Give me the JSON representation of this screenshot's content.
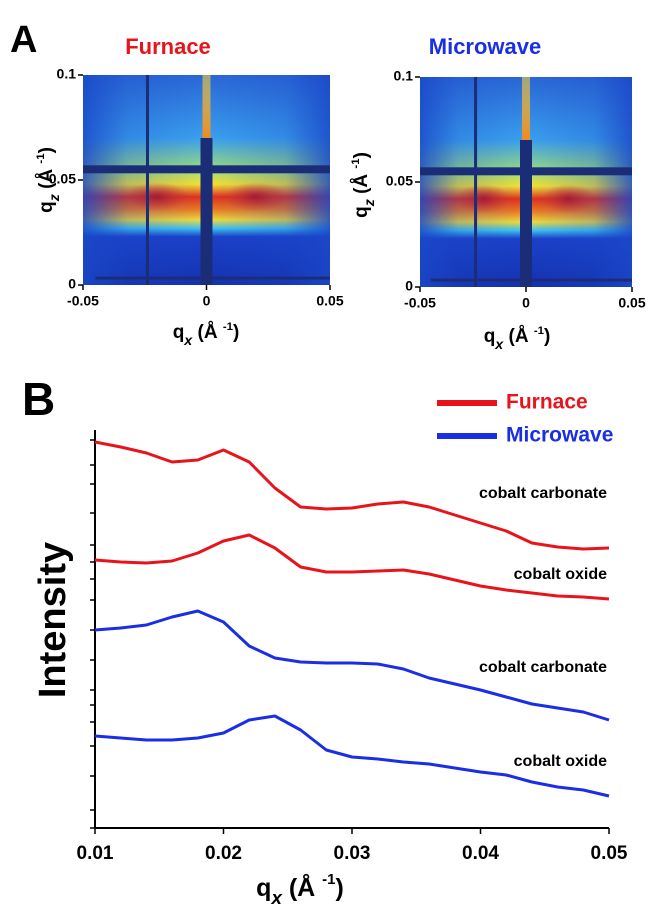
{
  "panel_labels": [
    "A",
    "B"
  ],
  "chart_data": [
    {
      "type": "image",
      "title": "Furnace",
      "title_color": "#e8141b",
      "xlabel": [
        "q",
        "x",
        " (Å ",
        "-1",
        ")"
      ],
      "ylabel": [
        "q",
        "z",
        " (Å ",
        "-1",
        ")"
      ],
      "xlim": [
        -0.05,
        0.05
      ],
      "xticks": [
        -0.05,
        0,
        0.05
      ],
      "ylim": [
        0,
        0.1
      ],
      "yticks": [
        0,
        0.05,
        0.1
      ]
    },
    {
      "type": "image",
      "title": "Microwave",
      "title_color": "#1a2ee6",
      "xlabel": [
        "q",
        "x",
        " (Å ",
        "-1",
        ")"
      ],
      "ylabel": [
        "q",
        "z",
        " (Å ",
        "-1",
        ")"
      ],
      "xlim": [
        -0.05,
        0.05
      ],
      "xticks": [
        -0.05,
        0,
        0.05
      ],
      "ylim": [
        0,
        0.1
      ],
      "yticks": [
        0,
        0.05,
        0.1
      ]
    },
    {
      "type": "line",
      "xlabel": [
        "q",
        "x",
        " (Å ",
        "-1",
        ")"
      ],
      "ylabel": "Intensity",
      "xlim": [
        0.01,
        0.05
      ],
      "xticks": [
        0.01,
        0.02,
        0.03,
        0.04,
        0.05
      ],
      "ylim": [
        0,
        388
      ],
      "yticks": [
        0,
        18,
        52,
        82,
        106,
        123,
        138,
        168,
        198,
        228,
        249,
        266,
        283,
        315,
        344,
        363,
        388
      ],
      "legend": [
        {
          "name": "Furnace",
          "color": "#e8141b"
        },
        {
          "name": "Microwave",
          "color": "#1a2ee6"
        }
      ],
      "x": [
        0.01,
        0.012,
        0.014,
        0.016,
        0.018,
        0.02,
        0.022,
        0.024,
        0.026,
        0.028,
        0.03,
        0.032,
        0.034,
        0.036,
        0.038,
        0.04,
        0.042,
        0.044,
        0.046,
        0.048,
        0.05
      ],
      "series": [
        {
          "color": "#e8141b",
          "label": "cobalt carbonate",
          "values": [
            386,
            381,
            375,
            366,
            368,
            378,
            366,
            340,
            321,
            319,
            320,
            324,
            326,
            321,
            313,
            305,
            297,
            285,
            281,
            279,
            280
          ]
        },
        {
          "color": "#e8141b",
          "label": "cobalt oxide",
          "values": [
            268,
            266,
            265,
            267,
            275,
            287,
            293,
            280,
            261,
            256,
            256,
            257,
            258,
            254,
            248,
            242,
            238,
            235,
            232,
            231,
            229
          ]
        },
        {
          "color": "#1a2ee6",
          "label": "cobalt carbonate",
          "values": [
            198,
            200,
            203,
            211,
            217,
            206,
            182,
            170,
            166,
            165,
            165,
            164,
            159,
            150,
            144,
            138,
            131,
            124,
            120,
            116,
            108
          ]
        },
        {
          "color": "#1a2ee6",
          "label": "cobalt oxide",
          "values": [
            92,
            90,
            88,
            88,
            90,
            95,
            108,
            112,
            98,
            78,
            71,
            69,
            66,
            64,
            60,
            56,
            53,
            46,
            41,
            38,
            32
          ]
        }
      ]
    }
  ]
}
